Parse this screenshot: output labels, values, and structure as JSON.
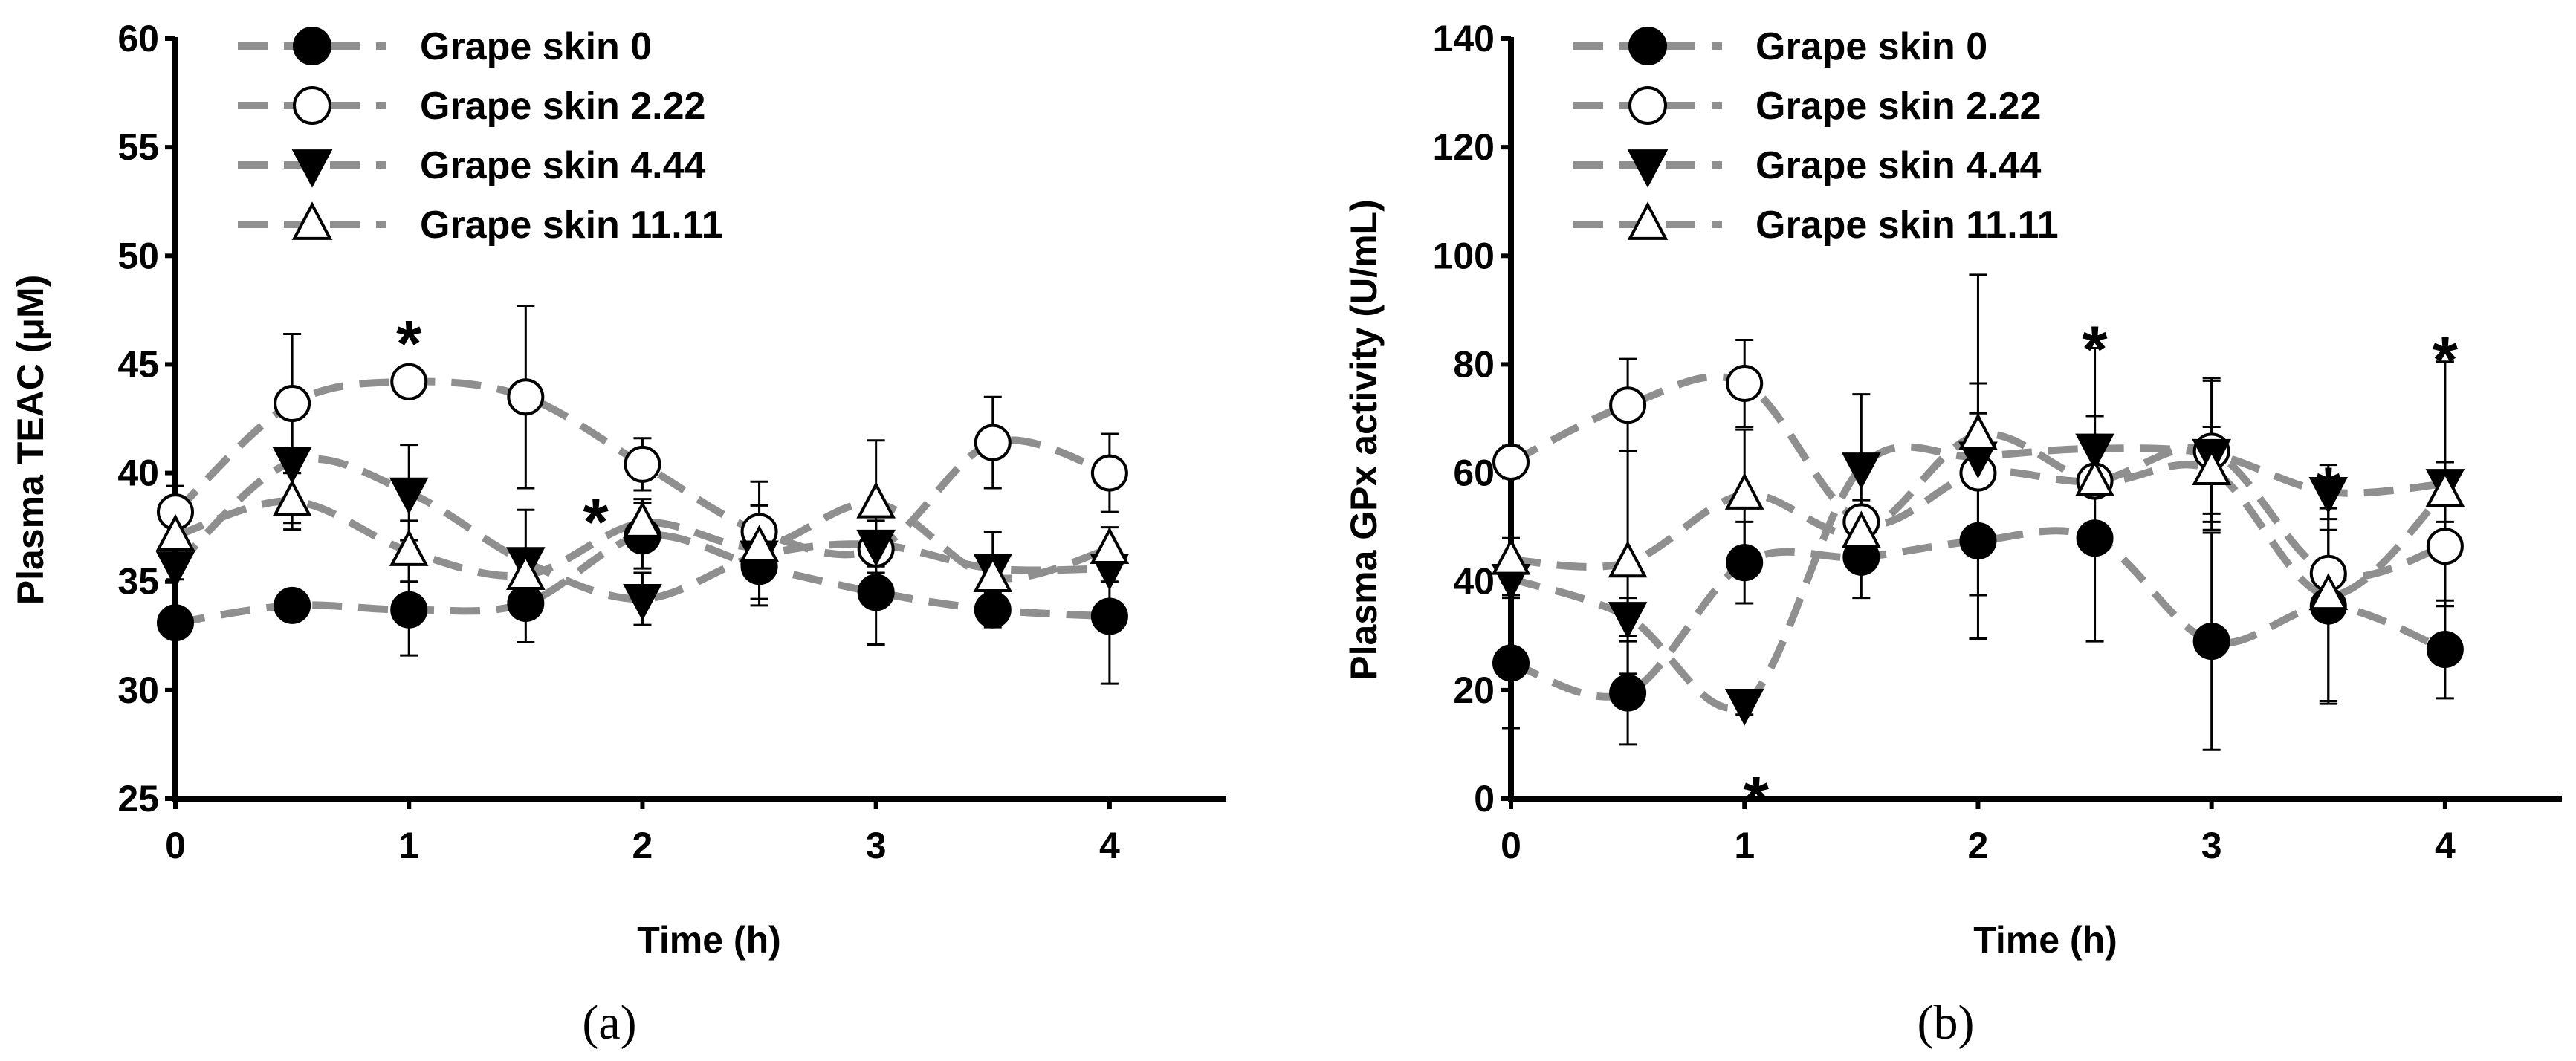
{
  "colors": {
    "line": "#8f8f8f",
    "marker_filled": "#000000",
    "marker_open": "#ffffff",
    "axis": "#000000",
    "errorbar": "#000000"
  },
  "chart_data": [
    {
      "type": "line",
      "panel_label": "(a)",
      "xlabel": "Time (h)",
      "ylabel": "Plasma TEAC (μM)",
      "xlim": [
        0,
        4.5
      ],
      "ylim": [
        25,
        60
      ],
      "xticks": [
        0,
        1,
        2,
        3,
        4
      ],
      "xtick_labels": [
        "0",
        "1",
        "2",
        "3",
        "4"
      ],
      "yticks": [
        25,
        30,
        35,
        40,
        45,
        50,
        55,
        60
      ],
      "ytick_labels": [
        "25",
        "30",
        "35",
        "40",
        "45",
        "50",
        "55",
        "60"
      ],
      "legend_position": "top-left",
      "series": [
        {
          "name": "Grape skin 0",
          "marker": "circle-filled",
          "x": [
            0,
            0.5,
            1,
            1.5,
            2,
            2.5,
            3,
            3.5,
            4
          ],
          "y": [
            33.1,
            33.9,
            33.7,
            34.0,
            37.1,
            35.7,
            34.5,
            33.7,
            33.4
          ],
          "err": [
            0.5,
            0.4,
            2.1,
            1.8,
            1.5,
            1.5,
            2.4,
            0.8,
            3.1
          ]
        },
        {
          "name": "Grape skin 2.22",
          "marker": "circle-open",
          "x": [
            0,
            0.5,
            1,
            1.5,
            2,
            2.5,
            3,
            3.5,
            4
          ],
          "y": [
            38.2,
            43.2,
            44.2,
            43.5,
            40.4,
            37.3,
            36.5,
            41.4,
            40.0
          ],
          "err": [
            1.2,
            3.2,
            0.4,
            4.2,
            1.2,
            2.3,
            1.3,
            2.1,
            1.8
          ]
        },
        {
          "name": "Grape skin 4.44",
          "marker": "triangle-down-filled",
          "x": [
            0,
            0.5,
            1,
            1.5,
            2,
            2.5,
            3,
            3.5,
            4
          ],
          "y": [
            35.7,
            40.5,
            39.1,
            35.9,
            34.2,
            36.2,
            36.7,
            35.6,
            35.6
          ],
          "err": [
            0.6,
            2.8,
            2.2,
            2.4,
            1.2,
            2.3,
            1.3,
            1.7,
            0.6
          ]
        },
        {
          "name": "Grape skin 11.11",
          "marker": "triangle-up-open",
          "x": [
            0,
            0.5,
            1,
            1.5,
            2,
            2.5,
            3,
            3.5,
            4
          ],
          "y": [
            37.1,
            38.7,
            36.4,
            35.3,
            37.7,
            36.6,
            38.6,
            35.2,
            36.5
          ],
          "err": [
            0.6,
            1.3,
            1.4,
            0.8,
            1.1,
            1.2,
            2.9,
            1.0,
            1.0
          ]
        }
      ],
      "annotations": [
        {
          "text": "*",
          "x": 1,
          "y": 46.5
        },
        {
          "text": "*",
          "x": 1.8,
          "y": 38.3
        }
      ]
    },
    {
      "type": "line",
      "panel_label": "(b)",
      "xlabel": "Time (h)",
      "ylabel": "Plasma GPx activity (U/mL)",
      "xlim": [
        0,
        4.5
      ],
      "ylim": [
        0,
        140
      ],
      "xticks": [
        0,
        1,
        2,
        3,
        4
      ],
      "xtick_labels": [
        "0",
        "1",
        "2",
        "3",
        "4"
      ],
      "yticks": [
        0,
        20,
        40,
        60,
        80,
        100,
        120,
        140
      ],
      "ytick_labels": [
        "0",
        "20",
        "40",
        "60",
        "80",
        "100",
        "120",
        "140"
      ],
      "legend_position": "top-left",
      "series": [
        {
          "name": "Grape skin 0",
          "marker": "circle-filled",
          "x": [
            0,
            0.5,
            1,
            1.5,
            2,
            2.5,
            3,
            3.5,
            4
          ],
          "y": [
            25,
            19.5,
            43.5,
            44.5,
            47.5,
            48,
            29,
            35.5,
            27.5
          ],
          "err": [
            12,
            9.5,
            7.5,
            7.5,
            10,
            19,
            20,
            18,
            9
          ]
        },
        {
          "name": "Grape skin 2.22",
          "marker": "circle-open",
          "x": [
            0,
            0.5,
            1,
            1.5,
            2,
            2.5,
            3,
            3.5,
            4
          ],
          "y": [
            62,
            72.5,
            76.5,
            51,
            60,
            58.5,
            64,
            41.5,
            46.5
          ],
          "err": [
            3,
            8.5,
            8,
            4,
            11,
            12,
            13,
            8,
            11
          ]
        },
        {
          "name": "Grape skin 4.44",
          "marker": "triangle-down-filled",
          "x": [
            0,
            0.5,
            1,
            1.5,
            2,
            2.5,
            3,
            3.5,
            4
          ],
          "y": [
            40.5,
            33.5,
            17.5,
            61,
            63,
            64.5,
            63.5,
            56.5,
            58
          ],
          "err": [
            3,
            3.5,
            2,
            13.5,
            33.5,
            18.5,
            14,
            5,
            22.5
          ]
        },
        {
          "name": "Grape skin 11.11",
          "marker": "triangle-up-open",
          "x": [
            0,
            0.5,
            1,
            1.5,
            2,
            2.5,
            3,
            3.5,
            4
          ],
          "y": [
            44,
            43.5,
            56,
            49,
            67,
            58.5,
            60.5,
            37.5,
            56.5
          ],
          "err": [
            4,
            20.5,
            12,
            4.5,
            9.5,
            12,
            8,
            19.5,
            5.5
          ]
        }
      ],
      "annotations": [
        {
          "text": "*",
          "x": 2.5,
          "y": 85
        },
        {
          "text": "*",
          "x": 3.5,
          "y": 59
        },
        {
          "text": "*",
          "x": 4,
          "y": 83
        },
        {
          "text": "*",
          "x": 1.05,
          "y": 2
        }
      ]
    }
  ]
}
